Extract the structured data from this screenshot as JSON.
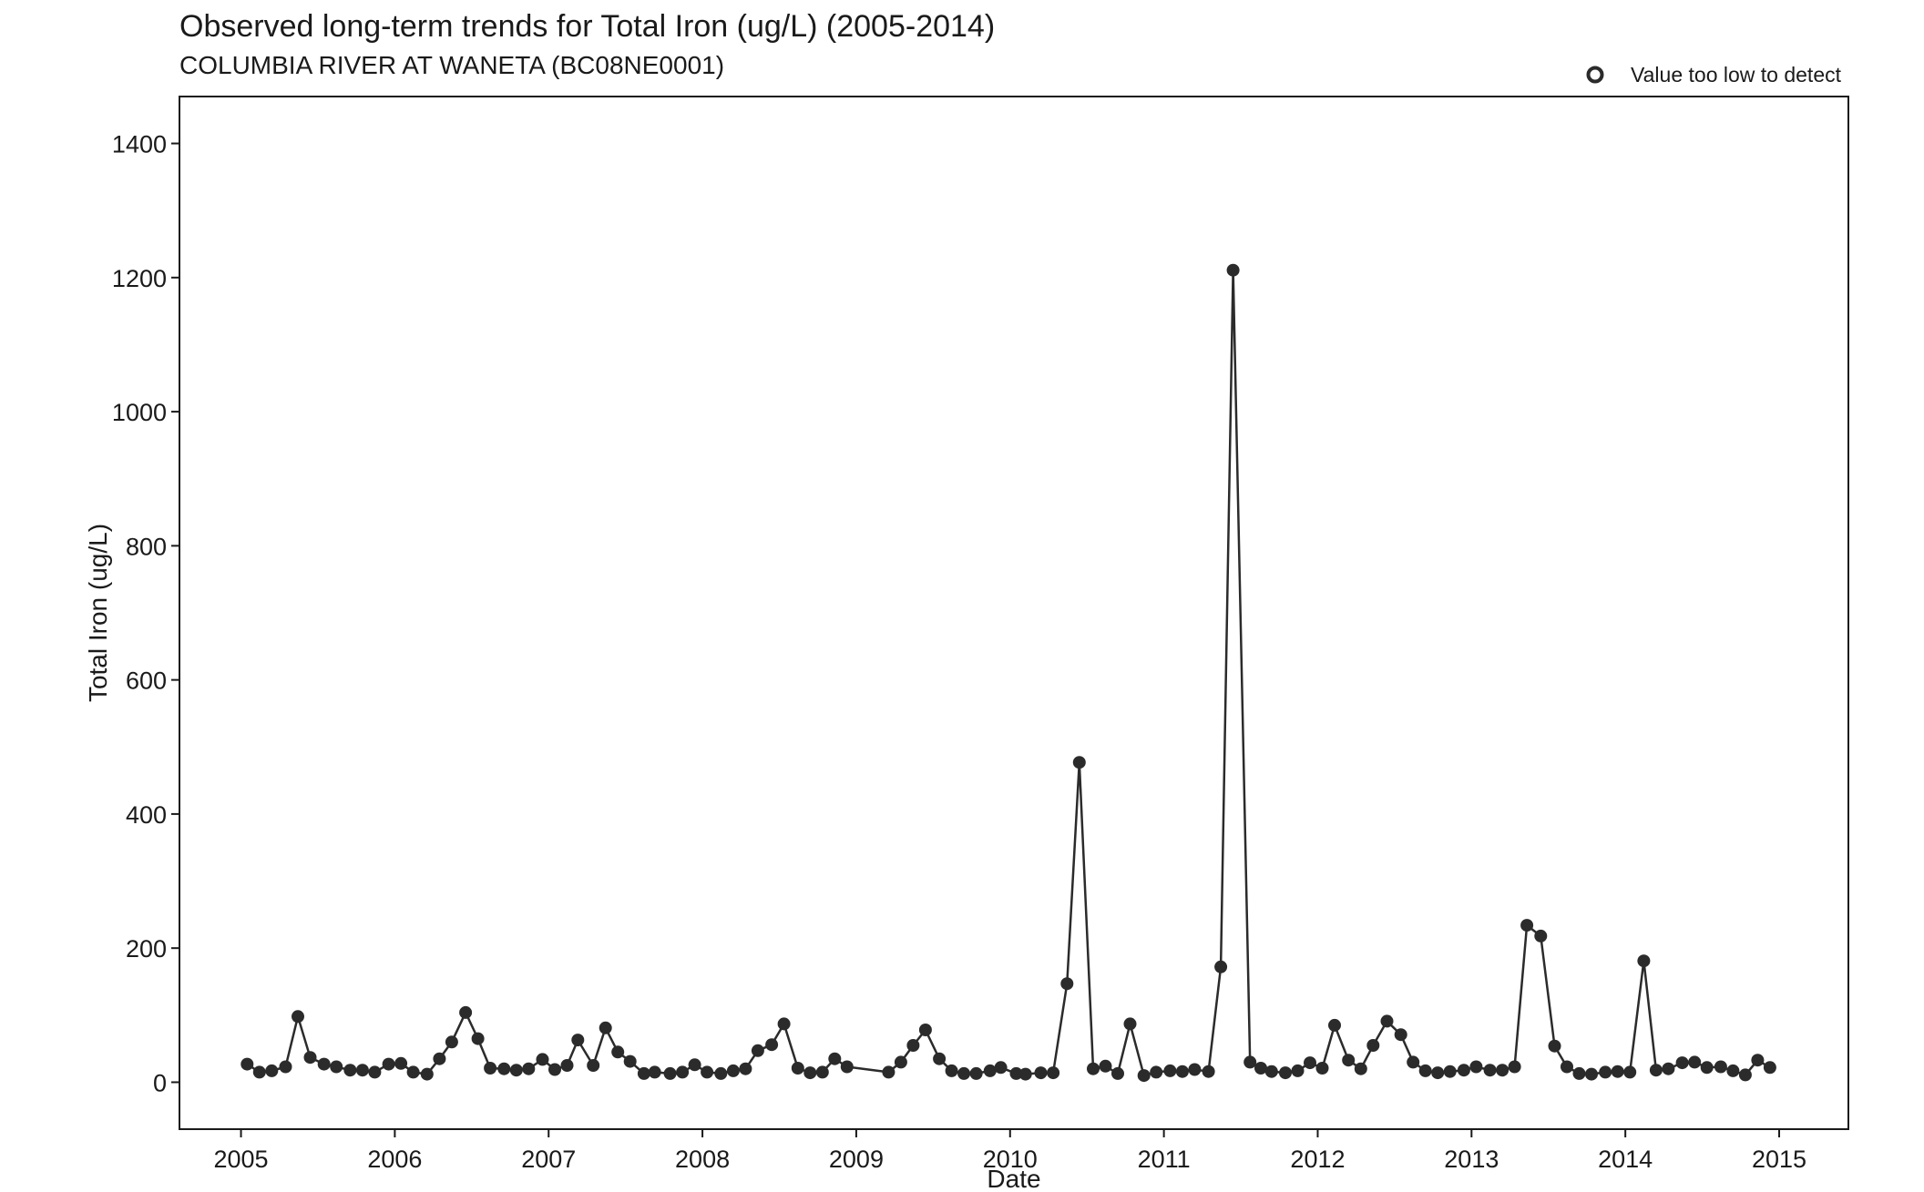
{
  "chart_data": {
    "type": "line",
    "title": "Observed long-term trends for Total Iron (ug/L) (2005-2014)",
    "subtitle": "COLUMBIA RIVER AT WANETA (BC08NE0001)",
    "xlabel": "Date",
    "ylabel": "Total Iron (ug/L)",
    "xlim": [
      2004.6,
      2015.45
    ],
    "ylim": [
      -70,
      1470
    ],
    "xticks": [
      "2005",
      "2006",
      "2007",
      "2008",
      "2009",
      "2010",
      "2011",
      "2012",
      "2013",
      "2014",
      "2015"
    ],
    "yticks": [
      "0",
      "200",
      "400",
      "600",
      "800",
      "1000",
      "1200",
      "1400"
    ],
    "grid": false,
    "legend": {
      "position": "top-right",
      "entries": [
        {
          "label": "Value too low to detect",
          "marker": "open-circle"
        }
      ]
    },
    "colors": {
      "series": "#2b2b2b",
      "axis": "#1a1a1a"
    },
    "series": [
      {
        "x": [
          2005.04,
          2005.12,
          2005.2,
          2005.29,
          2005.37,
          2005.45,
          2005.54,
          2005.62,
          2005.71,
          2005.79,
          2005.87,
          2005.96,
          2006.04,
          2006.12,
          2006.21,
          2006.29,
          2006.37,
          2006.46,
          2006.54,
          2006.62,
          2006.71,
          2006.79,
          2006.87,
          2006.96,
          2007.04,
          2007.12,
          2007.19,
          2007.29,
          2007.37,
          2007.45,
          2007.53,
          2007.62,
          2007.69,
          2007.79,
          2007.87,
          2007.95,
          2008.03,
          2008.12,
          2008.2,
          2008.28,
          2008.36,
          2008.45,
          2008.53,
          2008.62,
          2008.7,
          2008.78,
          2008.86,
          2008.94,
          2009.21,
          2009.29,
          2009.37,
          2009.45,
          2009.54,
          2009.62,
          2009.7,
          2009.78,
          2009.87,
          2009.94,
          2010.04,
          2010.1,
          2010.2,
          2010.28,
          2010.37,
          2010.45,
          2010.54,
          2010.62,
          2010.7,
          2010.78,
          2010.87,
          2010.95,
          2011.04,
          2011.12,
          2011.2,
          2011.29,
          2011.37,
          2011.45,
          2011.56,
          2011.63,
          2011.7,
          2011.79,
          2011.87,
          2011.95,
          2012.03,
          2012.11,
          2012.2,
          2012.28,
          2012.36,
          2012.45,
          2012.54,
          2012.62,
          2012.7,
          2012.78,
          2012.86,
          2012.95,
          2013.03,
          2013.12,
          2013.2,
          2013.28,
          2013.36,
          2013.45,
          2013.54,
          2013.62,
          2013.7,
          2013.78,
          2013.87,
          2013.95,
          2014.03,
          2014.12,
          2014.2,
          2014.28,
          2014.37,
          2014.45,
          2014.53,
          2014.62,
          2014.7,
          2014.78,
          2014.86,
          2014.94
        ],
        "y": [
          27,
          15,
          17,
          23,
          98,
          37,
          27,
          23,
          18,
          18,
          15,
          27,
          28,
          15,
          12,
          35,
          60,
          104,
          65,
          21,
          20,
          18,
          20,
          34,
          19,
          25,
          63,
          25,
          81,
          45,
          31,
          13,
          15,
          13,
          15,
          26,
          15,
          13,
          17,
          20,
          47,
          56,
          87,
          21,
          14,
          15,
          35,
          23,
          15,
          30,
          55,
          78,
          35,
          17,
          13,
          13,
          17,
          22,
          13,
          12,
          14,
          14,
          147,
          477,
          20,
          24,
          13,
          87,
          10,
          15,
          17,
          16,
          19,
          16,
          172,
          1211,
          30,
          21,
          16,
          14,
          17,
          29,
          21,
          85,
          33,
          20,
          55,
          91,
          71,
          30,
          17,
          14,
          16,
          18,
          23,
          18,
          18,
          23,
          234,
          218,
          54,
          23,
          13,
          12,
          15,
          16,
          15,
          181,
          18,
          20,
          29,
          30,
          22,
          23,
          17,
          11,
          33,
          22
        ]
      }
    ]
  }
}
